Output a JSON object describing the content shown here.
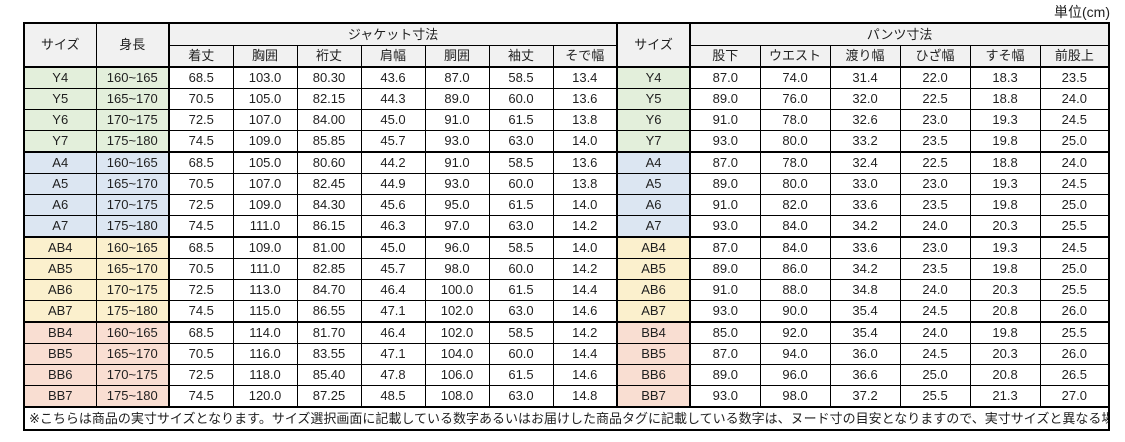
{
  "unit_label": "単位(cm)",
  "colors": {
    "header_bg": "#f1f1f1",
    "group_y_bg": "#e3efdb",
    "group_a_bg": "#dce6f2",
    "group_ab_bg": "#fbf0cd",
    "group_bb_bg": "#f9ded2",
    "border": "#000000",
    "text": "#1f1f1f"
  },
  "table": {
    "headers": {
      "size": "サイズ",
      "height": "身長",
      "jacket_group": "ジャケット寸法",
      "jacket_cols": [
        "着丈",
        "胸囲",
        "裄丈",
        "肩幅",
        "胴囲",
        "袖丈",
        "そで幅"
      ],
      "size2": "サイズ",
      "pants_group": "パンツ寸法",
      "pants_cols": [
        "股下",
        "ウエスト",
        "渡り幅",
        "ひざ幅",
        "すそ幅",
        "前股上"
      ]
    },
    "rows": [
      {
        "size": "Y4",
        "height": "160~165",
        "group": "y",
        "jacket": [
          "68.5",
          "103.0",
          "80.30",
          "43.6",
          "87.0",
          "58.5",
          "13.4"
        ],
        "pants": [
          "87.0",
          "74.0",
          "31.4",
          "22.0",
          "18.3",
          "23.5"
        ]
      },
      {
        "size": "Y5",
        "height": "165~170",
        "group": "y",
        "jacket": [
          "70.5",
          "105.0",
          "82.15",
          "44.3",
          "89.0",
          "60.0",
          "13.6"
        ],
        "pants": [
          "89.0",
          "76.0",
          "32.0",
          "22.5",
          "18.8",
          "24.0"
        ]
      },
      {
        "size": "Y6",
        "height": "170~175",
        "group": "y",
        "jacket": [
          "72.5",
          "107.0",
          "84.00",
          "45.0",
          "91.0",
          "61.5",
          "13.8"
        ],
        "pants": [
          "91.0",
          "78.0",
          "32.6",
          "23.0",
          "19.3",
          "24.5"
        ]
      },
      {
        "size": "Y7",
        "height": "175~180",
        "group": "y",
        "jacket": [
          "74.5",
          "109.0",
          "85.85",
          "45.7",
          "93.0",
          "63.0",
          "14.0"
        ],
        "pants": [
          "93.0",
          "80.0",
          "33.2",
          "23.5",
          "19.8",
          "25.0"
        ]
      },
      {
        "size": "A4",
        "height": "160~165",
        "group": "a",
        "jacket": [
          "68.5",
          "105.0",
          "80.60",
          "44.2",
          "91.0",
          "58.5",
          "13.6"
        ],
        "pants": [
          "87.0",
          "78.0",
          "32.4",
          "22.5",
          "18.8",
          "24.0"
        ]
      },
      {
        "size": "A5",
        "height": "165~170",
        "group": "a",
        "jacket": [
          "70.5",
          "107.0",
          "82.45",
          "44.9",
          "93.0",
          "60.0",
          "13.8"
        ],
        "pants": [
          "89.0",
          "80.0",
          "33.0",
          "23.0",
          "19.3",
          "24.5"
        ]
      },
      {
        "size": "A6",
        "height": "170~175",
        "group": "a",
        "jacket": [
          "72.5",
          "109.0",
          "84.30",
          "45.6",
          "95.0",
          "61.5",
          "14.0"
        ],
        "pants": [
          "91.0",
          "82.0",
          "33.6",
          "23.5",
          "19.8",
          "25.0"
        ]
      },
      {
        "size": "A7",
        "height": "175~180",
        "group": "a",
        "jacket": [
          "74.5",
          "111.0",
          "86.15",
          "46.3",
          "97.0",
          "63.0",
          "14.2"
        ],
        "pants": [
          "93.0",
          "84.0",
          "34.2",
          "24.0",
          "20.3",
          "25.5"
        ]
      },
      {
        "size": "AB4",
        "height": "160~165",
        "group": "ab",
        "jacket": [
          "68.5",
          "109.0",
          "81.00",
          "45.0",
          "96.0",
          "58.5",
          "14.0"
        ],
        "pants": [
          "87.0",
          "84.0",
          "33.6",
          "23.0",
          "19.3",
          "24.5"
        ]
      },
      {
        "size": "AB5",
        "height": "165~170",
        "group": "ab",
        "jacket": [
          "70.5",
          "111.0",
          "82.85",
          "45.7",
          "98.0",
          "60.0",
          "14.2"
        ],
        "pants": [
          "89.0",
          "86.0",
          "34.2",
          "23.5",
          "19.8",
          "25.0"
        ]
      },
      {
        "size": "AB6",
        "height": "170~175",
        "group": "ab",
        "jacket": [
          "72.5",
          "113.0",
          "84.70",
          "46.4",
          "100.0",
          "61.5",
          "14.4"
        ],
        "pants": [
          "91.0",
          "88.0",
          "34.8",
          "24.0",
          "20.3",
          "25.5"
        ]
      },
      {
        "size": "AB7",
        "height": "175~180",
        "group": "ab",
        "jacket": [
          "74.5",
          "115.0",
          "86.55",
          "47.1",
          "102.0",
          "63.0",
          "14.6"
        ],
        "pants": [
          "93.0",
          "90.0",
          "35.4",
          "24.5",
          "20.8",
          "26.0"
        ]
      },
      {
        "size": "BB4",
        "height": "160~165",
        "group": "bb",
        "jacket": [
          "68.5",
          "114.0",
          "81.70",
          "46.4",
          "102.0",
          "58.5",
          "14.2"
        ],
        "pants": [
          "85.0",
          "92.0",
          "35.4",
          "24.0",
          "19.8",
          "25.5"
        ]
      },
      {
        "size": "BB5",
        "height": "165~170",
        "group": "bb",
        "jacket": [
          "70.5",
          "116.0",
          "83.55",
          "47.1",
          "104.0",
          "60.0",
          "14.4"
        ],
        "pants": [
          "87.0",
          "94.0",
          "36.0",
          "24.5",
          "20.3",
          "26.0"
        ]
      },
      {
        "size": "BB6",
        "height": "170~175",
        "group": "bb",
        "jacket": [
          "72.5",
          "118.0",
          "85.40",
          "47.8",
          "106.0",
          "61.5",
          "14.6"
        ],
        "pants": [
          "89.0",
          "96.0",
          "36.6",
          "25.0",
          "20.8",
          "26.5"
        ]
      },
      {
        "size": "BB7",
        "height": "175~180",
        "group": "bb",
        "jacket": [
          "74.5",
          "120.0",
          "87.25",
          "48.5",
          "108.0",
          "63.0",
          "14.8"
        ],
        "pants": [
          "93.0",
          "98.0",
          "37.2",
          "25.5",
          "21.3",
          "27.0"
        ]
      }
    ]
  },
  "note": "※こちらは商品の実寸サイズとなります。サイズ選択画面に記載している数字あるいはお届けした商品タグに記載している数字は、ヌード寸の目安となりますので、実寸サイズと異なる場合がございます。"
}
